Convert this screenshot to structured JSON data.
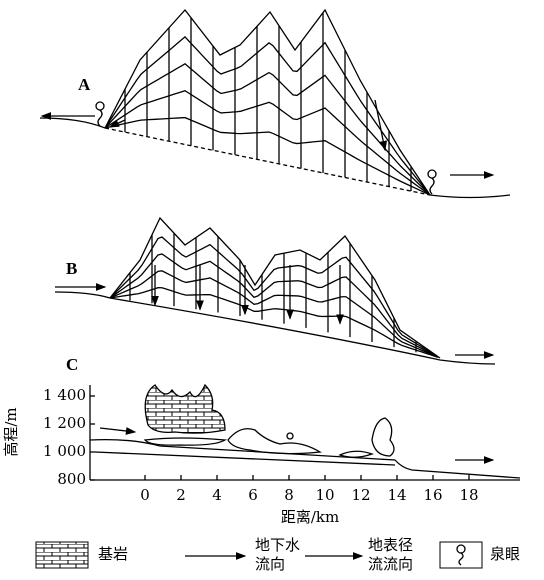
{
  "panels": [
    {
      "label": "A"
    },
    {
      "label": "B"
    },
    {
      "label": "C"
    }
  ],
  "axis": {
    "y_label": "高程/m",
    "x_label": "距离/km",
    "yticks": [
      "1 400",
      "1 200",
      "1 000",
      "800"
    ],
    "xticks": [
      "0",
      "2",
      "4",
      "6",
      "8",
      "10",
      "12",
      "14",
      "16",
      "18"
    ]
  },
  "legend": [
    {
      "lines": [
        "基岩"
      ]
    },
    {
      "lines": [
        "地下水",
        "流向"
      ]
    },
    {
      "lines": [
        "地表径",
        "流流向"
      ]
    },
    {
      "lines": [
        "泉眼"
      ]
    }
  ]
}
